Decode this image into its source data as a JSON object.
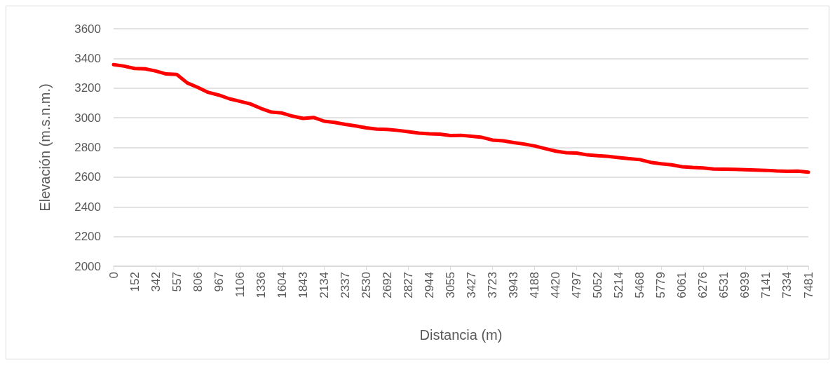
{
  "chart_data": {
    "type": "line",
    "xlabel": "Distancia (m)",
    "ylabel": "Elevación (m.s.n.m.)",
    "categories": [
      "0",
      null,
      "152",
      null,
      "342",
      null,
      "557",
      null,
      "806",
      null,
      "967",
      null,
      "1106",
      null,
      "1336",
      null,
      "1604",
      null,
      "1843",
      null,
      "2134",
      null,
      "2337",
      null,
      "2530",
      null,
      "2692",
      null,
      "2827",
      null,
      "2944",
      null,
      "3055",
      null,
      "3427",
      null,
      "3723",
      null,
      "3943",
      null,
      "4188",
      null,
      "4420",
      null,
      "4797",
      null,
      "5052",
      null,
      "5214",
      null,
      "5468",
      null,
      "5779",
      null,
      "6061",
      null,
      "6276",
      null,
      "6531",
      null,
      "6939",
      null,
      "7141",
      null,
      "7334",
      null,
      "7481"
    ],
    "series": [
      {
        "color": "#ff0000",
        "values": [
          3358,
          3348,
          3332,
          3330,
          3315,
          3295,
          3292,
          3235,
          3205,
          3171,
          3153,
          3128,
          3111,
          3093,
          3063,
          3038,
          3032,
          3011,
          2996,
          3002,
          2977,
          2969,
          2956,
          2945,
          2932,
          2924,
          2922,
          2915,
          2906,
          2897,
          2892,
          2890,
          2880,
          2882,
          2876,
          2868,
          2850,
          2845,
          2833,
          2823,
          2810,
          2792,
          2775,
          2765,
          2762,
          2750,
          2745,
          2740,
          2732,
          2725,
          2718,
          2700,
          2690,
          2683,
          2670,
          2665,
          2662,
          2655,
          2654,
          2652,
          2650,
          2648,
          2646,
          2642,
          2640,
          2641,
          2634
        ]
      }
    ],
    "ylim": [
      2000,
      3600
    ],
    "yticks": [
      2000,
      2200,
      2400,
      2600,
      2800,
      3000,
      3200,
      3400,
      3600
    ],
    "grid": "y",
    "marker": "none",
    "line_style": "solid"
  }
}
